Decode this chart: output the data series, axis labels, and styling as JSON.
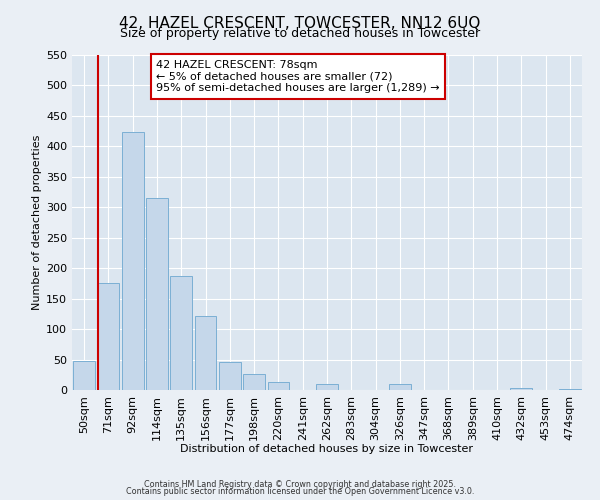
{
  "title": "42, HAZEL CRESCENT, TOWCESTER, NN12 6UQ",
  "subtitle": "Size of property relative to detached houses in Towcester",
  "xlabel": "Distribution of detached houses by size in Towcester",
  "ylabel": "Number of detached properties",
  "bar_labels": [
    "50sqm",
    "71sqm",
    "92sqm",
    "114sqm",
    "135sqm",
    "156sqm",
    "177sqm",
    "198sqm",
    "220sqm",
    "241sqm",
    "262sqm",
    "283sqm",
    "304sqm",
    "326sqm",
    "347sqm",
    "368sqm",
    "389sqm",
    "410sqm",
    "432sqm",
    "453sqm",
    "474sqm"
  ],
  "bar_values": [
    47,
    176,
    423,
    315,
    187,
    122,
    46,
    26,
    13,
    0,
    10,
    0,
    0,
    10,
    0,
    0,
    0,
    0,
    3,
    0,
    2
  ],
  "bar_color": "#c5d7ea",
  "bar_edge_color": "#7bafd4",
  "ylim": [
    0,
    550
  ],
  "yticks": [
    0,
    50,
    100,
    150,
    200,
    250,
    300,
    350,
    400,
    450,
    500,
    550
  ],
  "vline_index": 1,
  "vline_color": "#cc0000",
  "annotation_title": "42 HAZEL CRESCENT: 78sqm",
  "annotation_line1": "← 5% of detached houses are smaller (72)",
  "annotation_line2": "95% of semi-detached houses are larger (1,289) →",
  "annotation_box_color": "#cc0000",
  "footer1": "Contains HM Land Registry data © Crown copyright and database right 2025.",
  "footer2": "Contains public sector information licensed under the Open Government Licence v3.0.",
  "background_color": "#eaeff5",
  "plot_bg_color": "#dce6f0",
  "grid_color": "#ffffff",
  "title_fontsize": 11,
  "subtitle_fontsize": 9,
  "axis_label_fontsize": 8,
  "tick_fontsize": 8,
  "annotation_fontsize": 8
}
